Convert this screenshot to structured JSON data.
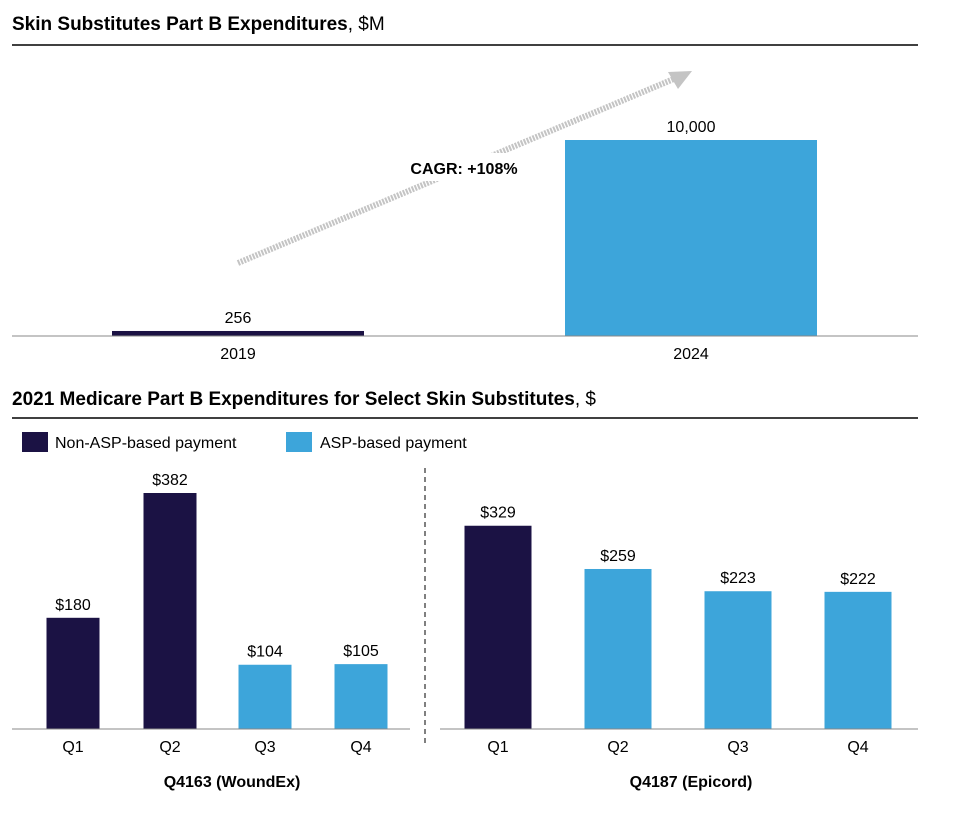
{
  "colors": {
    "non_asp": "#1b1244",
    "asp": "#3da5da",
    "arrow": "#c4c4c4",
    "axis": "#888888",
    "rule": "#000000"
  },
  "top": {
    "title_bold": "Skin Substitutes Part B Expenditures",
    "title_unit": ", $M",
    "cagr_label": "CAGR: +108%"
  },
  "bottom": {
    "title_bold": "2021 Medicare Part B Expenditures for Select Skin Substitutes",
    "title_unit": ", $",
    "legend": [
      {
        "label": "Non-ASP-based payment",
        "color": "#1b1244"
      },
      {
        "label": "ASP-based payment",
        "color": "#3da5da"
      }
    ]
  },
  "chart_data": [
    {
      "type": "bar",
      "title": "Skin Substitutes Part B Expenditures, $M",
      "categories": [
        "2019",
        "2024"
      ],
      "values": [
        256,
        10000
      ],
      "value_labels": [
        "256",
        "10,000"
      ],
      "colors": [
        "#1b1244",
        "#3da5da"
      ],
      "ylim": [
        0,
        10000
      ],
      "annotation": "CAGR: +108%",
      "grid": false
    },
    {
      "type": "bar",
      "title": "Q4163 (WoundEx)",
      "categories": [
        "Q1",
        "Q2",
        "Q3",
        "Q4"
      ],
      "values": [
        180,
        382,
        104,
        105
      ],
      "value_labels": [
        "$180",
        "$382",
        "$104",
        "$105"
      ],
      "payment_type": [
        "Non-ASP-based payment",
        "Non-ASP-based payment",
        "ASP-based payment",
        "ASP-based payment"
      ],
      "ylim": [
        0,
        382
      ],
      "grid": false
    },
    {
      "type": "bar",
      "title": "Q4187 (Epicord)",
      "categories": [
        "Q1",
        "Q2",
        "Q3",
        "Q4"
      ],
      "values": [
        329,
        259,
        223,
        222
      ],
      "value_labels": [
        "$329",
        "$259",
        "$223",
        "$222"
      ],
      "payment_type": [
        "Non-ASP-based payment",
        "ASP-based payment",
        "ASP-based payment",
        "ASP-based payment"
      ],
      "ylim": [
        0,
        382
      ],
      "grid": false
    }
  ]
}
